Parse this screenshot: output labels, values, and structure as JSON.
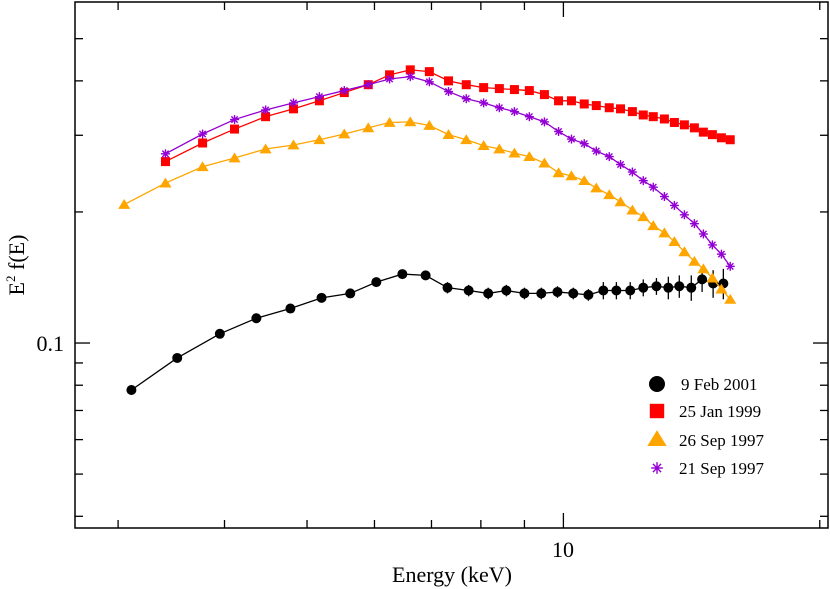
{
  "chart_data": {
    "type": "scatter",
    "title": "",
    "xlabel": "Energy (keV)",
    "ylabel_main": "E",
    "ylabel_sup": "2",
    "ylabel_rest": " f(E)",
    "xscale": "log",
    "yscale": "log",
    "xlim": [
      2.67,
      20.45
    ],
    "ylim": [
      0.0376,
      0.607
    ],
    "x_tick_labels": [
      {
        "value": 10,
        "label": "10"
      }
    ],
    "x_minor_ticks": [
      3,
      4,
      5,
      6,
      7,
      8,
      9,
      20
    ],
    "y_tick_labels": [
      {
        "value": 0.1,
        "label": "0.1"
      }
    ],
    "y_minor_ticks": [
      0.04,
      0.05,
      0.06,
      0.07,
      0.08,
      0.09,
      0.2,
      0.3,
      0.4,
      0.5
    ],
    "grid": false,
    "legend_position": "bottom-right",
    "series": [
      {
        "name": "9 Feb 2001",
        "marker": "circle",
        "color": "#000000",
        "x": [
          3.11,
          3.52,
          3.95,
          4.36,
          4.78,
          5.2,
          5.62,
          6.03,
          6.47,
          6.89,
          7.31,
          7.74,
          8.16,
          8.57,
          9.0,
          9.42,
          9.84,
          10.27,
          10.7,
          11.14,
          11.54,
          11.98,
          12.41,
          12.86,
          13.28,
          13.68,
          14.13,
          14.55,
          14.99,
          15.41
        ],
        "y": [
          0.078,
          0.0924,
          0.105,
          0.114,
          0.12,
          0.127,
          0.13,
          0.138,
          0.144,
          0.143,
          0.134,
          0.132,
          0.13,
          0.132,
          0.13,
          0.13,
          0.131,
          0.13,
          0.129,
          0.132,
          0.132,
          0.132,
          0.134,
          0.135,
          0.134,
          0.135,
          0.134,
          0.14,
          0.137,
          0.137
        ],
        "yerr": [
          0.002,
          0.002,
          0.002,
          0.002,
          0.002,
          0.002,
          0.002,
          0.002,
          0.002,
          0.002,
          0.004,
          0.004,
          0.004,
          0.004,
          0.004,
          0.004,
          0.004,
          0.004,
          0.004,
          0.006,
          0.006,
          0.006,
          0.006,
          0.006,
          0.008,
          0.008,
          0.009,
          0.009,
          0.01,
          0.011
        ]
      },
      {
        "name": "25 Jan 1999",
        "marker": "square",
        "color": "#ff0000",
        "x": [
          3.41,
          3.77,
          4.11,
          4.47,
          4.82,
          5.17,
          5.53,
          5.9,
          6.25,
          6.61,
          6.96,
          7.33,
          7.69,
          8.06,
          8.41,
          8.76,
          9.12,
          9.5,
          9.87,
          10.22,
          10.58,
          10.93,
          11.32,
          11.67,
          12.05,
          12.41,
          12.75,
          13.14,
          13.5,
          13.87,
          14.25,
          14.6,
          14.96,
          15.33,
          15.7
        ],
        "y": [
          0.261,
          0.288,
          0.31,
          0.331,
          0.345,
          0.36,
          0.376,
          0.392,
          0.413,
          0.424,
          0.42,
          0.4,
          0.392,
          0.386,
          0.384,
          0.382,
          0.38,
          0.372,
          0.36,
          0.36,
          0.354,
          0.351,
          0.347,
          0.345,
          0.34,
          0.334,
          0.331,
          0.327,
          0.321,
          0.317,
          0.312,
          0.305,
          0.301,
          0.296,
          0.293
        ]
      },
      {
        "name": "26 Sep 1997",
        "marker": "triangle",
        "color": "#ffa500",
        "x": [
          3.05,
          3.41,
          3.77,
          4.11,
          4.47,
          4.82,
          5.17,
          5.53,
          5.9,
          6.25,
          6.61,
          6.96,
          7.33,
          7.69,
          8.06,
          8.41,
          8.76,
          9.12,
          9.5,
          9.87,
          10.22,
          10.58,
          10.93,
          11.32,
          11.67,
          12.05,
          12.41,
          12.75,
          13.14,
          13.5,
          13.87,
          14.25,
          14.6,
          14.96,
          15.33,
          15.7
        ],
        "y": [
          0.208,
          0.233,
          0.254,
          0.266,
          0.279,
          0.285,
          0.293,
          0.302,
          0.312,
          0.321,
          0.322,
          0.316,
          0.301,
          0.293,
          0.284,
          0.279,
          0.273,
          0.268,
          0.259,
          0.246,
          0.242,
          0.236,
          0.227,
          0.219,
          0.211,
          0.202,
          0.195,
          0.186,
          0.179,
          0.171,
          0.162,
          0.154,
          0.148,
          0.141,
          0.133,
          0.126
        ]
      },
      {
        "name": "21 Sep 1997",
        "marker": "asterisk",
        "color": "#9400d3",
        "x": [
          3.41,
          3.77,
          4.11,
          4.47,
          4.82,
          5.17,
          5.53,
          5.9,
          6.25,
          6.61,
          6.96,
          7.33,
          7.69,
          8.06,
          8.41,
          8.76,
          9.12,
          9.5,
          9.87,
          10.22,
          10.58,
          10.93,
          11.32,
          11.67,
          12.05,
          12.41,
          12.75,
          13.14,
          13.5,
          13.87,
          14.25,
          14.6,
          14.96,
          15.33,
          15.7
        ],
        "y": [
          0.272,
          0.302,
          0.326,
          0.343,
          0.356,
          0.368,
          0.38,
          0.392,
          0.404,
          0.409,
          0.398,
          0.378,
          0.364,
          0.356,
          0.347,
          0.34,
          0.331,
          0.322,
          0.306,
          0.294,
          0.287,
          0.276,
          0.268,
          0.257,
          0.247,
          0.236,
          0.228,
          0.217,
          0.207,
          0.197,
          0.188,
          0.178,
          0.168,
          0.16,
          0.15
        ]
      }
    ]
  }
}
